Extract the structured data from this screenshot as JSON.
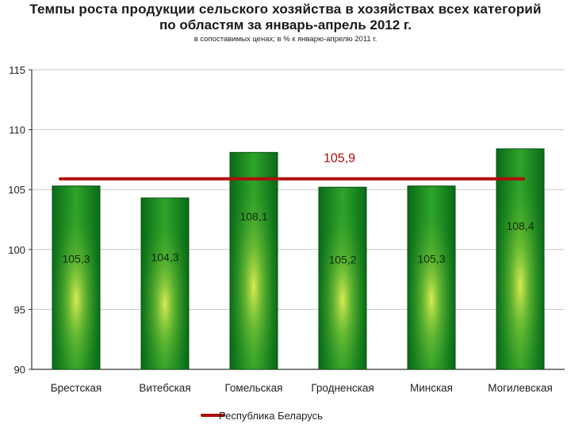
{
  "title_line1": "Темпы роста продукции сельского хозяйства в хозяйствах всех категорий",
  "title_line2": "по областям за январь-апрель 2012 г.",
  "subtitle": "в сопоставимых ценах; в % к январю-апрелю 2011 г.",
  "colors": {
    "bar_dark": "#0d7a1e",
    "bar_light": "#d6e94a",
    "line": "#b00d0d",
    "axis": "#333333"
  },
  "chart_data": {
    "type": "bar",
    "categories": [
      "Брестская",
      "Витебская",
      "Гомельская",
      "Гродненская",
      "Минская",
      "Могилевская"
    ],
    "values": [
      105.3,
      104.3,
      108.1,
      105.2,
      105.3,
      108.4
    ],
    "value_labels": [
      "105,3",
      "104,3",
      "108,1",
      "105,2",
      "105,3",
      "108,4"
    ],
    "ylim": [
      90,
      115
    ],
    "yticks": [
      90,
      95,
      100,
      105,
      110,
      115
    ],
    "grid": true,
    "reference_line": {
      "name": "Республика Беларусь",
      "value": 105.9,
      "label": "105,9"
    },
    "legend": {
      "position": "bottom",
      "entries": [
        "Республика Беларусь"
      ]
    }
  }
}
